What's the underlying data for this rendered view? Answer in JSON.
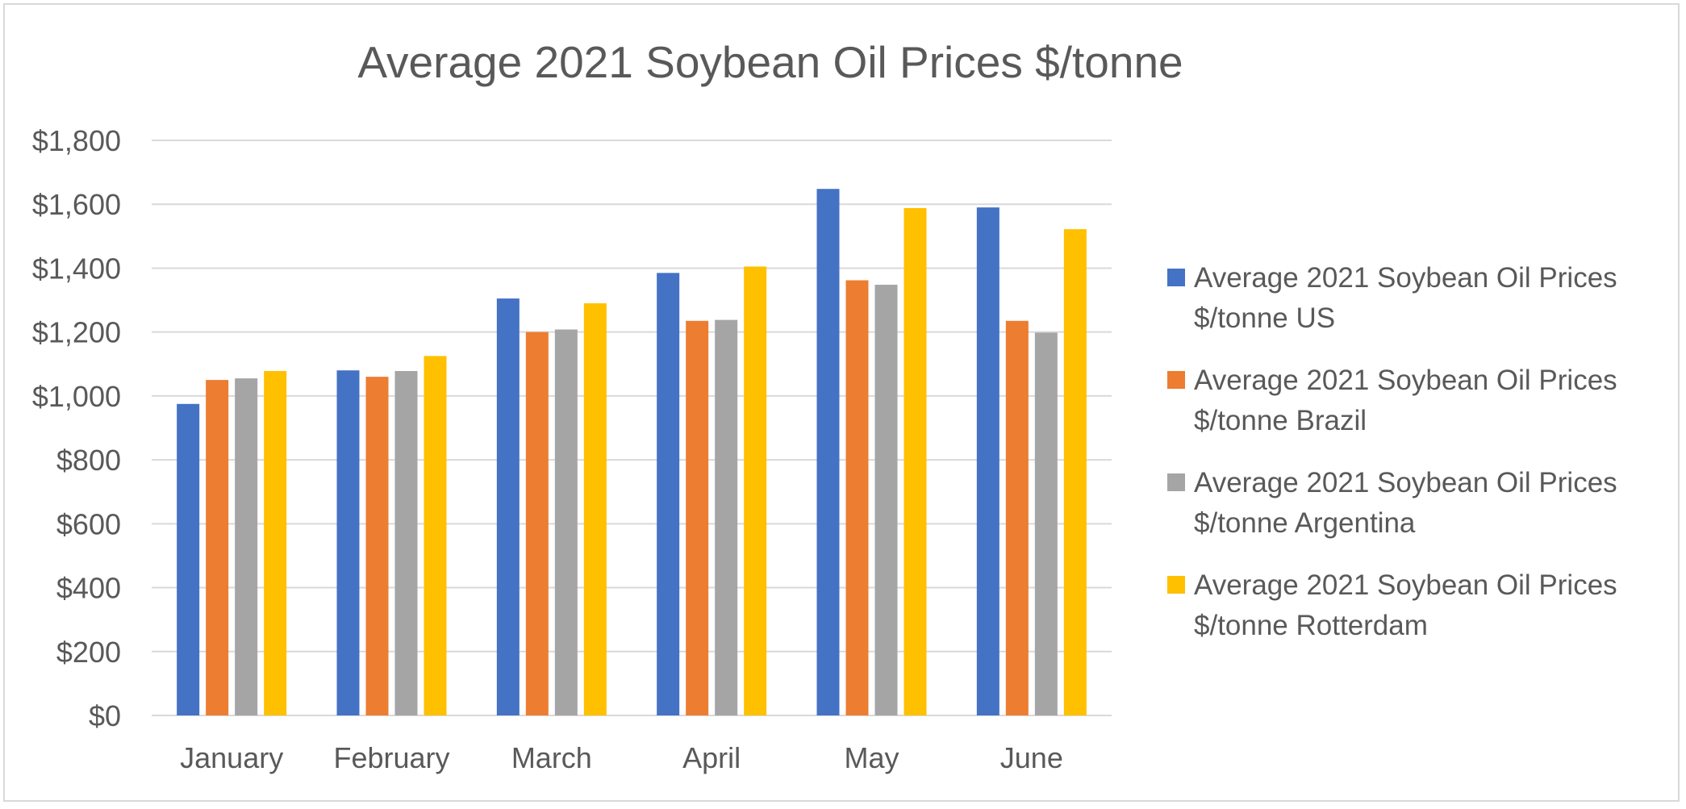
{
  "chart_data": {
    "type": "bar",
    "title": "Average 2021 Soybean Oil Prices $/tonne",
    "xlabel": "",
    "ylabel": "",
    "categories": [
      "January",
      "February",
      "March",
      "April",
      "May",
      "June"
    ],
    "ylim": [
      0,
      1800
    ],
    "yticks": [
      0,
      200,
      400,
      600,
      800,
      1000,
      1200,
      1400,
      1600,
      1800
    ],
    "ytick_labels": [
      "$0",
      "$200",
      "$400",
      "$600",
      "$800",
      "$1,000",
      "$1,200",
      "$1,400",
      "$1,600",
      "$1,800"
    ],
    "grid": true,
    "legend_position": "right",
    "series": [
      {
        "name": "Average 2021 Soybean Oil Prices $/tonne US",
        "legend_lines": [
          "Average 2021 Soybean Oil Prices",
          "$/tonne US"
        ],
        "color": "#4472c4",
        "values": [
          975,
          1080,
          1305,
          1385,
          1648,
          1590
        ]
      },
      {
        "name": "Average 2021 Soybean Oil Prices $/tonne Brazil",
        "legend_lines": [
          "Average 2021 Soybean Oil Prices",
          "$/tonne Brazil"
        ],
        "color": "#ed7d31",
        "values": [
          1050,
          1060,
          1200,
          1235,
          1362,
          1235
        ]
      },
      {
        "name": "Average 2021 Soybean Oil Prices $/tonne Argentina",
        "legend_lines": [
          "Average 2021 Soybean Oil Prices",
          "$/tonne Argentina"
        ],
        "color": "#a5a5a5",
        "values": [
          1055,
          1078,
          1208,
          1238,
          1348,
          1198
        ]
      },
      {
        "name": "Average 2021 Soybean Oil Prices $/tonne Rotterdam",
        "legend_lines": [
          "Average 2021 Soybean Oil Prices",
          "$/tonne Rotterdam"
        ],
        "color": "#ffc000",
        "values": [
          1078,
          1125,
          1290,
          1405,
          1588,
          1522
        ]
      }
    ]
  }
}
